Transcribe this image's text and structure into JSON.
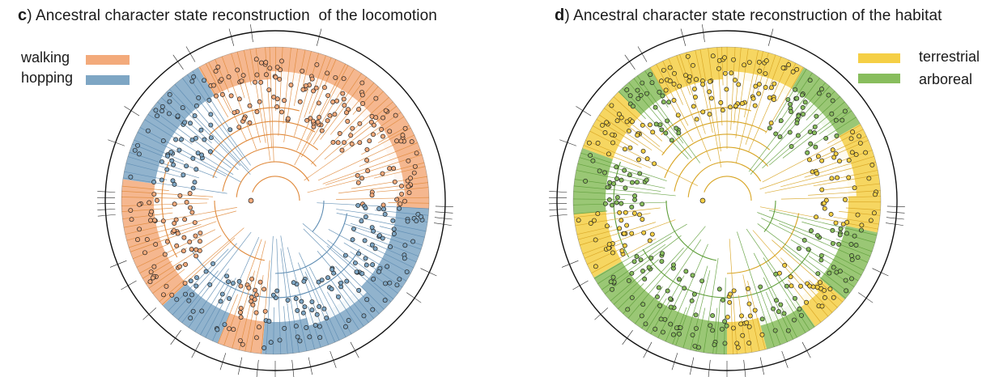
{
  "panels": {
    "c": {
      "letter": "c",
      "title": ") Ancestral character state reconstruction  of the locomotion",
      "legend": [
        {
          "label": "walking",
          "color": "#f3aa7b"
        },
        {
          "label": "hopping",
          "color": "#7ea6c4"
        }
      ],
      "sectors": [
        {
          "state": "walking",
          "from": 0,
          "to": 3
        },
        {
          "state": "hopping",
          "from": 3,
          "to": 95
        },
        {
          "state": "walking",
          "from": 95,
          "to": 112
        },
        {
          "state": "hopping",
          "from": 112,
          "to": 137
        },
        {
          "state": "walking",
          "from": 137,
          "to": 188
        },
        {
          "state": "hopping",
          "from": 188,
          "to": 240
        },
        {
          "state": "walking",
          "from": 240,
          "to": 360
        }
      ],
      "branch_colors": {
        "walking": "#e08a3c",
        "hopping": "#5f8db3"
      }
    },
    "d": {
      "letter": "d",
      "title": ") Ancestral character state reconstruction of the habitat",
      "legend": [
        {
          "label": "terrestrial",
          "color": "#f5cf45"
        },
        {
          "label": "arboreal",
          "color": "#88bd5d"
        }
      ],
      "sectors": [
        {
          "state": "terrestrial",
          "from": 0,
          "to": 12
        },
        {
          "state": "arboreal",
          "from": 12,
          "to": 40
        },
        {
          "state": "terrestrial",
          "from": 40,
          "to": 55
        },
        {
          "state": "arboreal",
          "from": 55,
          "to": 75
        },
        {
          "state": "terrestrial",
          "from": 75,
          "to": 90
        },
        {
          "state": "arboreal",
          "from": 90,
          "to": 150
        },
        {
          "state": "terrestrial",
          "from": 150,
          "to": 175
        },
        {
          "state": "arboreal",
          "from": 175,
          "to": 200
        },
        {
          "state": "terrestrial",
          "from": 200,
          "to": 225
        },
        {
          "state": "arboreal",
          "from": 225,
          "to": 240
        },
        {
          "state": "terrestrial",
          "from": 240,
          "to": 300
        },
        {
          "state": "arboreal",
          "from": 300,
          "to": 330
        },
        {
          "state": "terrestrial",
          "from": 330,
          "to": 360
        }
      ],
      "branch_colors": {
        "terrestrial": "#d8a524",
        "arboreal": "#5f9e3a"
      }
    }
  }
}
